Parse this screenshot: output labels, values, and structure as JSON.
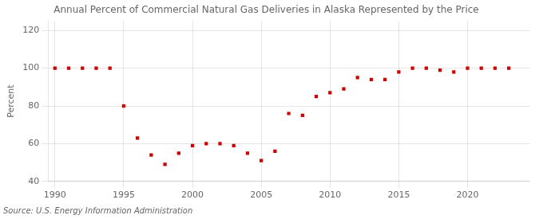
{
  "chart_data": {
    "type": "scatter",
    "title": "Annual Percent of Commercial Natural Gas Deliveries in Alaska Represented by the Price",
    "ylabel": "Percent",
    "annotations": [
      "Source: U.S. Energy Information Administration"
    ],
    "x": [
      1990,
      1991,
      1992,
      1993,
      1994,
      1995,
      1996,
      1997,
      1998,
      1999,
      2000,
      2001,
      2002,
      2003,
      2004,
      2005,
      2006,
      2007,
      2008,
      2009,
      2010,
      2011,
      2012,
      2013,
      2014,
      2015,
      2016,
      2017,
      2018,
      2019,
      2020,
      2021,
      2022,
      2023
    ],
    "values": [
      100,
      100,
      100,
      100,
      100,
      80,
      63,
      54,
      49,
      55,
      59,
      60,
      60,
      59,
      55,
      51,
      56,
      76,
      75,
      85,
      87,
      89,
      95,
      94,
      94,
      98,
      100,
      100,
      99,
      98,
      100,
      100,
      100,
      100
    ],
    "color": "#cc0000",
    "marker": "square",
    "xlim": [
      1989.5,
      2024.5
    ],
    "ylim": [
      40,
      125
    ],
    "xticks": [
      1990,
      1995,
      2000,
      2005,
      2010,
      2015,
      2020
    ],
    "yticks": [
      40,
      60,
      80,
      100,
      120
    ],
    "grid": true
  }
}
